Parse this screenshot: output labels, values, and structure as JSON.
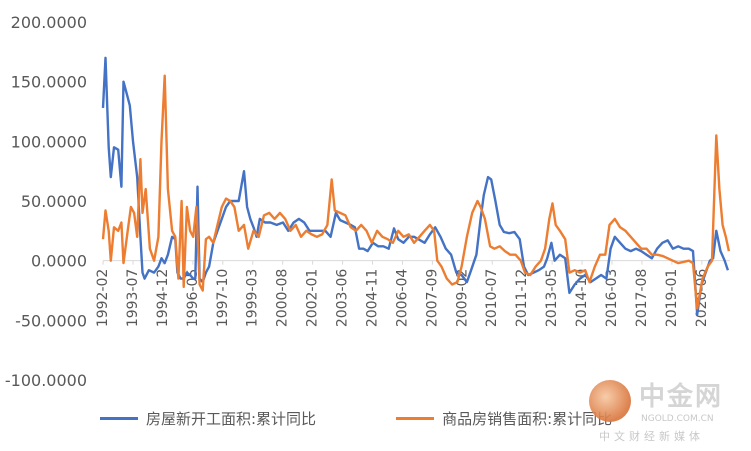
{
  "chart_data": {
    "type": "line",
    "title": "",
    "xlabel": "",
    "ylabel": "",
    "ylim": [
      -100,
      200
    ],
    "yticks": [
      "200.0000",
      "150.0000",
      "100.0000",
      "50.0000",
      "0.0000",
      "-50.0000",
      "-100.0000"
    ],
    "xlim": [
      1992.08,
      2021.75
    ],
    "xticks": [
      "1992-02",
      "1993-07",
      "1994-12",
      "1996-05",
      "1997-10",
      "1999-03",
      "2000-08",
      "2002-01",
      "2003-06",
      "2004-11",
      "2006-04",
      "2007-09",
      "2009-02",
      "2010-07",
      "2011-12",
      "2013-05",
      "2014-10",
      "2016-03",
      "2017-08",
      "2019-01",
      "2020-06"
    ],
    "grid": false,
    "legend_position": "bottom",
    "series": [
      {
        "name": "房屋新开工面积:累计同比",
        "color": "#4472C4",
        "points": [
          [
            1992.08,
            128
          ],
          [
            1992.2,
            170
          ],
          [
            1992.35,
            95
          ],
          [
            1992.45,
            70
          ],
          [
            1992.6,
            95
          ],
          [
            1992.8,
            93
          ],
          [
            1992.95,
            62
          ],
          [
            1993.05,
            150
          ],
          [
            1993.2,
            140
          ],
          [
            1993.35,
            130
          ],
          [
            1993.5,
            100
          ],
          [
            1993.7,
            70
          ],
          [
            1993.85,
            20
          ],
          [
            1993.95,
            -10
          ],
          [
            1994.05,
            -15
          ],
          [
            1994.25,
            -8
          ],
          [
            1994.5,
            -10
          ],
          [
            1994.7,
            -5
          ],
          [
            1994.85,
            2
          ],
          [
            1995.0,
            -2
          ],
          [
            1995.15,
            5
          ],
          [
            1995.35,
            20
          ],
          [
            1995.5,
            18
          ],
          [
            1995.6,
            -10
          ],
          [
            1995.75,
            -15
          ],
          [
            1995.9,
            -15
          ],
          [
            1996.05,
            -10
          ],
          [
            1996.2,
            -12
          ],
          [
            1996.35,
            -15
          ],
          [
            1996.45,
            -15
          ],
          [
            1996.55,
            62
          ],
          [
            1996.65,
            -15
          ],
          [
            1996.8,
            -18
          ],
          [
            1996.95,
            -10
          ],
          [
            1997.1,
            -5
          ],
          [
            1997.3,
            15
          ],
          [
            1997.5,
            25
          ],
          [
            1997.7,
            35
          ],
          [
            1997.9,
            45
          ],
          [
            1998.1,
            50
          ],
          [
            1998.3,
            50
          ],
          [
            1998.5,
            50
          ],
          [
            1998.75,
            75
          ],
          [
            1998.9,
            45
          ],
          [
            1999.05,
            35
          ],
          [
            1999.2,
            28
          ],
          [
            1999.35,
            20
          ],
          [
            1999.5,
            35
          ],
          [
            1999.75,
            32
          ],
          [
            2000.0,
            32
          ],
          [
            2000.3,
            30
          ],
          [
            2000.6,
            32
          ],
          [
            2000.85,
            25
          ],
          [
            2001.1,
            32
          ],
          [
            2001.35,
            35
          ],
          [
            2001.6,
            32
          ],
          [
            2001.85,
            25
          ],
          [
            2002.1,
            25
          ],
          [
            2002.35,
            25
          ],
          [
            2002.6,
            25
          ],
          [
            2002.85,
            20
          ],
          [
            2003.1,
            40
          ],
          [
            2003.3,
            34
          ],
          [
            2003.55,
            32
          ],
          [
            2003.8,
            30
          ],
          [
            2004.0,
            28
          ],
          [
            2004.2,
            10
          ],
          [
            2004.4,
            10
          ],
          [
            2004.6,
            8
          ],
          [
            2004.85,
            15
          ],
          [
            2005.1,
            12
          ],
          [
            2005.35,
            12
          ],
          [
            2005.6,
            10
          ],
          [
            2005.85,
            27
          ],
          [
            2006.05,
            18
          ],
          [
            2006.3,
            15
          ],
          [
            2006.55,
            20
          ],
          [
            2006.8,
            20
          ],
          [
            2007.0,
            18
          ],
          [
            2007.3,
            15
          ],
          [
            2007.55,
            22
          ],
          [
            2007.8,
            28
          ],
          [
            2008.05,
            20
          ],
          [
            2008.3,
            10
          ],
          [
            2008.55,
            5
          ],
          [
            2008.8,
            -10
          ],
          [
            2009.05,
            -12
          ],
          [
            2009.3,
            -18
          ],
          [
            2009.5,
            -8
          ],
          [
            2009.75,
            5
          ],
          [
            2009.95,
            35
          ],
          [
            2010.1,
            55
          ],
          [
            2010.3,
            70
          ],
          [
            2010.45,
            68
          ],
          [
            2010.65,
            50
          ],
          [
            2010.85,
            30
          ],
          [
            2011.05,
            24
          ],
          [
            2011.3,
            23
          ],
          [
            2011.55,
            24
          ],
          [
            2011.8,
            18
          ],
          [
            2012.0,
            -5
          ],
          [
            2012.2,
            -12
          ],
          [
            2012.45,
            -10
          ],
          [
            2012.7,
            -8
          ],
          [
            2012.95,
            -5
          ],
          [
            2013.1,
            2
          ],
          [
            2013.3,
            15
          ],
          [
            2013.45,
            0
          ],
          [
            2013.7,
            5
          ],
          [
            2013.95,
            2
          ],
          [
            2014.15,
            -27
          ],
          [
            2014.4,
            -20
          ],
          [
            2014.65,
            -15
          ],
          [
            2014.9,
            -12
          ],
          [
            2015.15,
            -18
          ],
          [
            2015.4,
            -15
          ],
          [
            2015.65,
            -12
          ],
          [
            2015.9,
            -15
          ],
          [
            2016.1,
            10
          ],
          [
            2016.3,
            20
          ],
          [
            2016.55,
            15
          ],
          [
            2016.8,
            10
          ],
          [
            2017.05,
            8
          ],
          [
            2017.3,
            10
          ],
          [
            2017.55,
            8
          ],
          [
            2017.8,
            5
          ],
          [
            2018.05,
            2
          ],
          [
            2018.3,
            10
          ],
          [
            2018.55,
            15
          ],
          [
            2018.8,
            17
          ],
          [
            2019.05,
            10
          ],
          [
            2019.3,
            12
          ],
          [
            2019.55,
            10
          ],
          [
            2019.8,
            10
          ],
          [
            2020.0,
            8
          ],
          [
            2020.2,
            -45
          ],
          [
            2020.4,
            -20
          ],
          [
            2020.6,
            -10
          ],
          [
            2020.8,
            0
          ],
          [
            2020.95,
            2
          ],
          [
            2021.1,
            25
          ],
          [
            2021.3,
            8
          ],
          [
            2021.5,
            0
          ],
          [
            2021.65,
            -8
          ]
        ]
      },
      {
        "name": "商品房销售面积:累计同比",
        "color": "#ED7D31",
        "points": [
          [
            1992.08,
            18
          ],
          [
            1992.2,
            42
          ],
          [
            1992.35,
            25
          ],
          [
            1992.45,
            0
          ],
          [
            1992.6,
            28
          ],
          [
            1992.8,
            25
          ],
          [
            1992.95,
            32
          ],
          [
            1993.05,
            -2
          ],
          [
            1993.25,
            25
          ],
          [
            1993.4,
            45
          ],
          [
            1993.55,
            40
          ],
          [
            1993.7,
            20
          ],
          [
            1993.85,
            85
          ],
          [
            1993.95,
            40
          ],
          [
            1994.1,
            60
          ],
          [
            1994.3,
            10
          ],
          [
            1994.5,
            0
          ],
          [
            1994.7,
            20
          ],
          [
            1994.85,
            100
          ],
          [
            1995.0,
            155
          ],
          [
            1995.15,
            60
          ],
          [
            1995.35,
            25
          ],
          [
            1995.5,
            20
          ],
          [
            1995.65,
            -15
          ],
          [
            1995.8,
            50
          ],
          [
            1995.9,
            -22
          ],
          [
            1996.05,
            45
          ],
          [
            1996.2,
            25
          ],
          [
            1996.35,
            20
          ],
          [
            1996.5,
            45
          ],
          [
            1996.65,
            -20
          ],
          [
            1996.8,
            -25
          ],
          [
            1996.95,
            18
          ],
          [
            1997.1,
            20
          ],
          [
            1997.3,
            15
          ],
          [
            1997.5,
            30
          ],
          [
            1997.7,
            45
          ],
          [
            1997.9,
            52
          ],
          [
            1998.1,
            50
          ],
          [
            1998.3,
            45
          ],
          [
            1998.5,
            25
          ],
          [
            1998.75,
            30
          ],
          [
            1998.95,
            10
          ],
          [
            1999.2,
            25
          ],
          [
            1999.45,
            20
          ],
          [
            1999.7,
            38
          ],
          [
            1999.95,
            40
          ],
          [
            2000.2,
            35
          ],
          [
            2000.45,
            40
          ],
          [
            2000.7,
            35
          ],
          [
            2000.95,
            25
          ],
          [
            2001.2,
            30
          ],
          [
            2001.45,
            20
          ],
          [
            2001.7,
            25
          ],
          [
            2001.95,
            22
          ],
          [
            2002.2,
            20
          ],
          [
            2002.45,
            22
          ],
          [
            2002.7,
            30
          ],
          [
            2002.9,
            68
          ],
          [
            2003.05,
            42
          ],
          [
            2003.3,
            40
          ],
          [
            2003.55,
            38
          ],
          [
            2003.8,
            28
          ],
          [
            2004.05,
            25
          ],
          [
            2004.3,
            30
          ],
          [
            2004.55,
            25
          ],
          [
            2004.8,
            15
          ],
          [
            2005.05,
            25
          ],
          [
            2005.3,
            20
          ],
          [
            2005.55,
            18
          ],
          [
            2005.8,
            15
          ],
          [
            2006.05,
            25
          ],
          [
            2006.3,
            20
          ],
          [
            2006.55,
            22
          ],
          [
            2006.8,
            15
          ],
          [
            2007.05,
            20
          ],
          [
            2007.3,
            25
          ],
          [
            2007.55,
            30
          ],
          [
            2007.75,
            25
          ],
          [
            2007.9,
            0
          ],
          [
            2008.1,
            -5
          ],
          [
            2008.35,
            -15
          ],
          [
            2008.6,
            -20
          ],
          [
            2008.85,
            -18
          ],
          [
            2009.05,
            -5
          ],
          [
            2009.3,
            20
          ],
          [
            2009.55,
            40
          ],
          [
            2009.8,
            50
          ],
          [
            2009.95,
            45
          ],
          [
            2010.15,
            35
          ],
          [
            2010.4,
            12
          ],
          [
            2010.6,
            10
          ],
          [
            2010.85,
            12
          ],
          [
            2011.1,
            8
          ],
          [
            2011.35,
            5
          ],
          [
            2011.6,
            5
          ],
          [
            2011.85,
            0
          ],
          [
            2012.05,
            -10
          ],
          [
            2012.3,
            -12
          ],
          [
            2012.55,
            -5
          ],
          [
            2012.8,
            0
          ],
          [
            2013.0,
            10
          ],
          [
            2013.2,
            35
          ],
          [
            2013.35,
            48
          ],
          [
            2013.5,
            30
          ],
          [
            2013.7,
            25
          ],
          [
            2013.95,
            18
          ],
          [
            2014.15,
            -10
          ],
          [
            2014.4,
            -8
          ],
          [
            2014.65,
            -10
          ],
          [
            2014.9,
            -8
          ],
          [
            2015.1,
            -18
          ],
          [
            2015.35,
            -5
          ],
          [
            2015.6,
            5
          ],
          [
            2015.85,
            5
          ],
          [
            2016.05,
            30
          ],
          [
            2016.3,
            35
          ],
          [
            2016.55,
            28
          ],
          [
            2016.8,
            25
          ],
          [
            2017.05,
            20
          ],
          [
            2017.3,
            15
          ],
          [
            2017.55,
            10
          ],
          [
            2017.8,
            10
          ],
          [
            2018.05,
            5
          ],
          [
            2018.3,
            5
          ],
          [
            2018.55,
            4
          ],
          [
            2018.8,
            2
          ],
          [
            2019.05,
            0
          ],
          [
            2019.3,
            -2
          ],
          [
            2019.55,
            -1
          ],
          [
            2019.8,
            0
          ],
          [
            2020.0,
            -2
          ],
          [
            2020.2,
            -40
          ],
          [
            2020.45,
            -15
          ],
          [
            2020.7,
            -5
          ],
          [
            2020.9,
            0
          ],
          [
            2021.1,
            105
          ],
          [
            2021.25,
            60
          ],
          [
            2021.4,
            30
          ],
          [
            2021.55,
            20
          ],
          [
            2021.7,
            8
          ]
        ]
      }
    ]
  },
  "watermark": {
    "name": "中金网",
    "url": "NGOLD.COM.CN",
    "tagline": "中文财经新媒体"
  }
}
